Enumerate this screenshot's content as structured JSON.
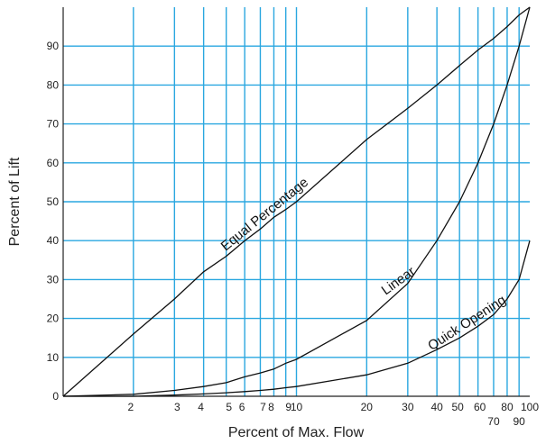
{
  "chart_data": {
    "type": "line",
    "xlabel": "Percent of Max. Flow",
    "ylabel": "Percent of Lift",
    "xlim": [
      0,
      100
    ],
    "ylim": [
      0,
      100
    ],
    "x_scale": "logarithmic",
    "grid": true,
    "grid_color": "#2aa7e0",
    "x_ticks": [
      {
        "value": 2,
        "label": "2"
      },
      {
        "value": 3,
        "label": "3"
      },
      {
        "value": 4,
        "label": "4"
      },
      {
        "value": 5,
        "label": "5"
      },
      {
        "value": 6,
        "label": "6"
      },
      {
        "value": 7,
        "label": "7"
      },
      {
        "value": 8,
        "label": "8"
      },
      {
        "value": 9,
        "label": "9"
      },
      {
        "value": 10,
        "label": "10"
      },
      {
        "value": 20,
        "label": "20"
      },
      {
        "value": 30,
        "label": "30"
      },
      {
        "value": 40,
        "label": "40"
      },
      {
        "value": 50,
        "label": "50"
      },
      {
        "value": 60,
        "label": "60"
      },
      {
        "value": 70,
        "label": "70"
      },
      {
        "value": 80,
        "label": "80"
      },
      {
        "value": 90,
        "label": "90"
      },
      {
        "value": 100,
        "label": "100"
      }
    ],
    "y_ticks": [
      0,
      10,
      20,
      30,
      40,
      50,
      60,
      70,
      80,
      90
    ],
    "series": [
      {
        "name": "Equal Percentage",
        "points": [
          [
            1,
            0
          ],
          [
            2,
            16
          ],
          [
            3,
            25
          ],
          [
            4,
            32
          ],
          [
            5,
            36
          ],
          [
            6,
            40
          ],
          [
            7,
            43
          ],
          [
            8,
            46
          ],
          [
            9,
            48
          ],
          [
            10,
            50
          ],
          [
            20,
            66
          ],
          [
            30,
            74
          ],
          [
            40,
            80
          ],
          [
            50,
            85
          ],
          [
            60,
            89
          ],
          [
            70,
            92
          ],
          [
            80,
            95
          ],
          [
            90,
            98
          ],
          [
            100,
            100
          ]
        ]
      },
      {
        "name": "Linear",
        "points": [
          [
            1,
            0
          ],
          [
            2,
            0.5
          ],
          [
            3,
            1.5
          ],
          [
            4,
            2.5
          ],
          [
            5,
            3.5
          ],
          [
            6,
            5
          ],
          [
            7,
            6
          ],
          [
            8,
            7
          ],
          [
            9,
            8.5
          ],
          [
            10,
            9.5
          ],
          [
            20,
            19.5
          ],
          [
            30,
            29
          ],
          [
            40,
            40
          ],
          [
            50,
            50
          ],
          [
            60,
            60
          ],
          [
            70,
            70
          ],
          [
            80,
            80
          ],
          [
            90,
            90
          ],
          [
            100,
            100
          ]
        ]
      },
      {
        "name": "Quick Opening",
        "points": [
          [
            1,
            0
          ],
          [
            2,
            0
          ],
          [
            3,
            0.3
          ],
          [
            4,
            0.6
          ],
          [
            5,
            0.9
          ],
          [
            6,
            1.2
          ],
          [
            7,
            1.5
          ],
          [
            8,
            1.8
          ],
          [
            9,
            2.2
          ],
          [
            10,
            2.5
          ],
          [
            20,
            5.5
          ],
          [
            30,
            8.5
          ],
          [
            40,
            12
          ],
          [
            50,
            15
          ],
          [
            60,
            18
          ],
          [
            70,
            21
          ],
          [
            80,
            25
          ],
          [
            90,
            30
          ],
          [
            100,
            40
          ]
        ]
      }
    ]
  }
}
